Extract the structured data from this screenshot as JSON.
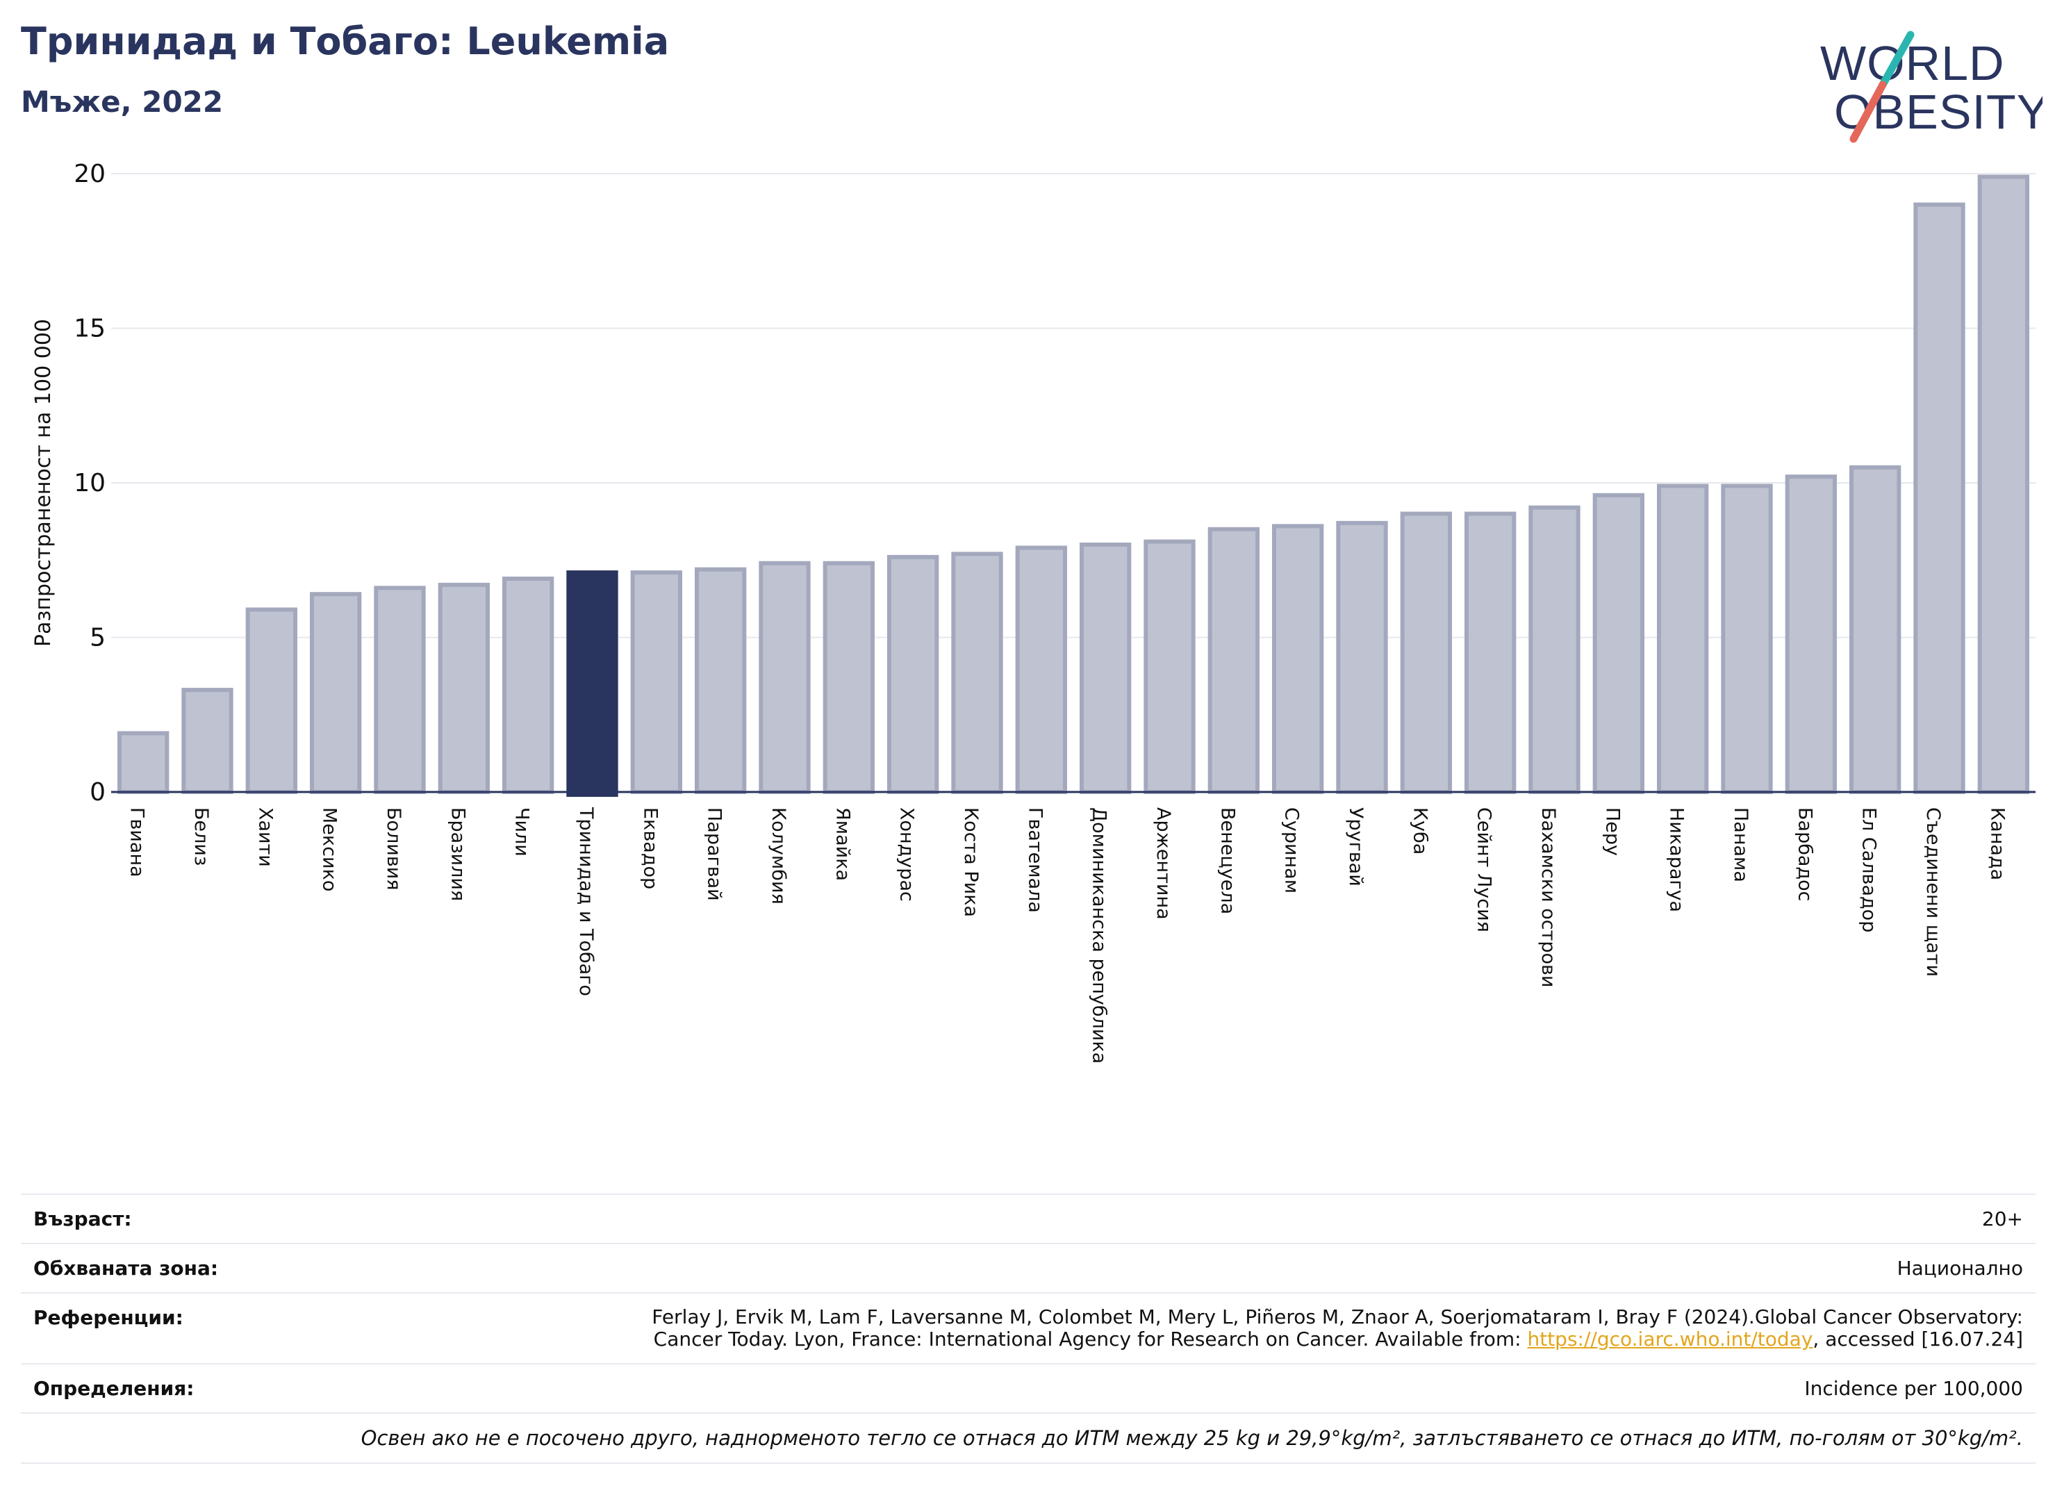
{
  "header": {
    "title": "Тринидад и Тобаго: Leukemia",
    "subtitle": "Мъже, 2022"
  },
  "logo": {
    "line1": "WORLD",
    "line2": "OBESITY",
    "colors": {
      "text": "#2a355f",
      "slash_teal": "#2bb5b0",
      "slash_coral": "#e4685a"
    }
  },
  "chart_data": {
    "type": "bar",
    "title": "Тринидад и Тобаго: Leukemia",
    "subtitle": "Мъже, 2022",
    "xlabel": "",
    "ylabel": "Разпространеност  на 100 000",
    "ylim": [
      0,
      20
    ],
    "yticks": [
      0,
      5,
      10,
      15,
      20
    ],
    "grid": true,
    "highlight": "Тринидад и Тобаго",
    "colors": {
      "bar": "#bfc3d1",
      "bar_edge": "#a3a8bd",
      "highlight": "#2a355f",
      "grid": "#e6e8ee",
      "axis": "#2a355f"
    },
    "categories": [
      "Гвиана",
      "Белиз",
      "Хаити",
      "Мексико",
      "Боливия",
      "Бразилия",
      "Чили",
      "Тринидад и Тобаго",
      "Еквадор",
      "Парагвай",
      "Колумбия",
      "Ямайка",
      "Хондурас",
      "Коста Рика",
      "Гватемала",
      "Доминиканска република",
      "Аржентина",
      "Венецуела",
      "Суринам",
      "Уругвай",
      "Куба",
      "Сейнт Лусия",
      "Бахамски острови",
      "Перу",
      "Никарагуа",
      "Панама",
      "Барбадос",
      "Ел Салвадор",
      "Съединени щати",
      "Канада"
    ],
    "values": [
      1.9,
      3.3,
      5.9,
      6.4,
      6.6,
      6.7,
      6.9,
      7.1,
      7.1,
      7.2,
      7.4,
      7.4,
      7.6,
      7.7,
      7.9,
      8.0,
      8.1,
      8.5,
      8.6,
      8.7,
      9.0,
      9.0,
      9.2,
      9.6,
      9.9,
      9.9,
      10.2,
      10.5,
      19.0,
      19.9
    ]
  },
  "info": {
    "age_label": "Възраст:",
    "age_value": "20+",
    "area_label": "Обхваната зона:",
    "area_value": "Национално",
    "refs_label": "Референции:",
    "refs_line1": "Ferlay J, Ervik M, Lam F, Laversanne M, Colombet M, Mery L, Piñeros M, Znaor A, Soerjomataram I, Bray F (2024).Global Cancer Observatory:",
    "refs_line2_pre": "Cancer Today. Lyon, France: International Agency for Research on Cancer. Available from: ",
    "refs_link": "https://gco.iarc.who.int/today",
    "refs_line2_post": ", accessed [16.07.24]",
    "defs_label": "Определения:",
    "defs_value": "Incidence per 100,000",
    "note": "Освен ако не е посочено друго, наднорменото тегло се отнася до ИТМ между 25 kg и 29,9°kg/m², затлъстяването се отнася до ИТМ, по-голям от 30°kg/m²."
  }
}
